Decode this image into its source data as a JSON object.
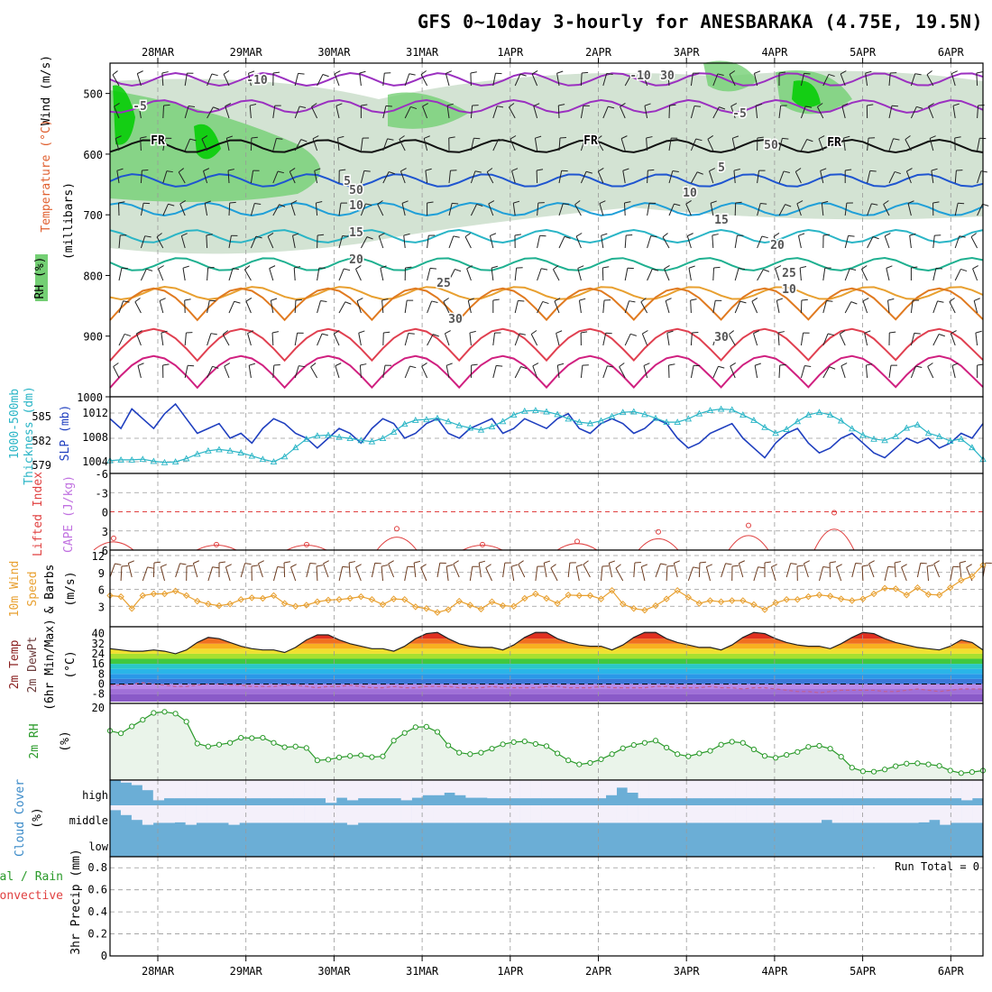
{
  "colors": {
    "rh_dark": "#00cc00",
    "rh_mid": "#74cf74",
    "rh_light": "#c8dcc8",
    "cloud": "#6baed6",
    "cloud_clear": "#f4f0fa",
    "slp": "#1f3fbf",
    "thick": "#2ab5c6",
    "li": "#e04040",
    "cape": "#c070e0",
    "wind10": "#e8a030",
    "barb": "#6b3a1e",
    "rh2m": "#2a9a2a",
    "rh2m_fill": "#eaf4ea"
  },
  "chart_data": {
    "type": "meteogram",
    "title": "GFS 0~10day 3-hourly for ANESBARAKA (4.75E, 19.5N)",
    "dates": [
      "28MAR",
      "29MAR",
      "30MAR",
      "31MAR",
      "1APR",
      "2APR",
      "3APR",
      "4APR",
      "5APR",
      "6APR"
    ],
    "panels": [
      {
        "id": "upper-air",
        "ylabels": [
          "Wind (m/s)",
          "Temperature (°C)",
          "RH (%)",
          "(millibars)"
        ],
        "yticks": [
          500,
          600,
          700,
          800,
          900,
          1000
        ],
        "ylim": [
          450,
          1000
        ],
        "contour_labels": [
          "-10",
          "-10",
          "-5",
          "-5",
          "FR",
          "FR",
          "FR",
          "5",
          "5",
          "10",
          "10",
          "15",
          "15",
          "20",
          "20",
          "25",
          "25",
          "30",
          "30",
          "50",
          "50",
          "30",
          "10"
        ]
      },
      {
        "id": "slp-thickness",
        "ylabels": [
          "1000-500mb",
          "Thickness (dm)",
          "SLP (mb)"
        ],
        "left_ticks": [
          "585",
          "582",
          "579"
        ],
        "right_ticks": [
          "1012",
          "1008",
          "1004"
        ],
        "slp_mb": [
          1010,
          1008,
          1012,
          1010,
          1008,
          1011,
          1013,
          1010,
          1007,
          1008,
          1009,
          1006,
          1007,
          1005,
          1008,
          1010,
          1009,
          1007,
          1006,
          1004,
          1006,
          1008,
          1007,
          1005,
          1008,
          1010,
          1009,
          1006,
          1007,
          1009,
          1010,
          1007,
          1006,
          1008,
          1009,
          1010,
          1007,
          1008,
          1010,
          1009,
          1008,
          1010,
          1011,
          1008,
          1007,
          1009,
          1010,
          1009,
          1007,
          1008,
          1010,
          1009,
          1006,
          1004,
          1005,
          1007,
          1008,
          1009,
          1006,
          1004,
          1002,
          1005,
          1007,
          1008,
          1005,
          1003,
          1004,
          1006,
          1007,
          1005,
          1003,
          1002,
          1004,
          1006,
          1005,
          1006,
          1004,
          1005,
          1007,
          1006,
          1009
        ],
        "thickness_dm": [
          578.6,
          578.7,
          578.7,
          578.8,
          578.5,
          578.3,
          578.4,
          578.9,
          579.6,
          580.1,
          580.3,
          580.1,
          579.8,
          579.3,
          578.8,
          578.4,
          579.2,
          580.6,
          581.9,
          582.4,
          582.5,
          582.2,
          582.0,
          581.7,
          581.5,
          582.0,
          583.0,
          584.2,
          584.8,
          584.9,
          585.1,
          584.6,
          584.0,
          583.6,
          583.3,
          583.8,
          584.6,
          585.6,
          586.2,
          586.3,
          586.1,
          585.7,
          585.0,
          584.5,
          584.3,
          584.7,
          585.4,
          586.0,
          586.1,
          585.7,
          585.1,
          584.5,
          584.5,
          585.0,
          585.8,
          586.3,
          586.5,
          586.4,
          585.6,
          584.8,
          583.7,
          582.8,
          583.4,
          584.6,
          585.6,
          586.0,
          585.6,
          584.7,
          583.5,
          582.5,
          581.9,
          581.7,
          582.3,
          583.6,
          584.1,
          582.8,
          582.3,
          581.6,
          581.9,
          580.6,
          578.8
        ]
      },
      {
        "id": "li-cape",
        "ylabels": [
          "Lifted Index",
          "CAPE (J/kg)"
        ],
        "yticks": [
          "-6",
          "-3",
          "0",
          "3",
          "6"
        ],
        "ylim": [
          -6,
          6
        ],
        "lifted_index": [
          6,
          6,
          6,
          6,
          6,
          6,
          6,
          6,
          6,
          6,
          6,
          6,
          6,
          6,
          6,
          6,
          6,
          6,
          6,
          6,
          6,
          6,
          6,
          6,
          6,
          6,
          6,
          6,
          6,
          6,
          5.5,
          6,
          6,
          6,
          6,
          6,
          6,
          6,
          6,
          6,
          6,
          6,
          6,
          6,
          6,
          6,
          6,
          6,
          6,
          6,
          6,
          6,
          6,
          6,
          6,
          6,
          6,
          6,
          6,
          6,
          6,
          6,
          6,
          6,
          6,
          6,
          6,
          6,
          6,
          6,
          6,
          6,
          6,
          6,
          6,
          6,
          6,
          6,
          6,
          6,
          6
        ]
      },
      {
        "id": "wind10",
        "ylabels": [
          "10m Wind",
          "Speed",
          "& Barbs",
          "(m/s)"
        ],
        "yticks": [
          "12",
          "9",
          "6",
          "3"
        ],
        "ylim": [
          0,
          12
        ],
        "speed_ms": [
          4.9,
          4.7,
          2.6,
          4.9,
          5.2,
          5.2,
          5.7,
          4.9,
          3.9,
          3.4,
          3.1,
          3.4,
          4.2,
          4.5,
          4.4,
          4.9,
          3.5,
          3.0,
          3.2,
          3.8,
          4.1,
          4.2,
          4.4,
          4.7,
          4.2,
          3.3,
          4.3,
          4.2,
          2.9,
          2.6,
          1.9,
          2.4,
          3.9,
          3.2,
          2.5,
          3.8,
          3.1,
          3.0,
          4.4,
          5.2,
          4.4,
          3.5,
          5.0,
          4.9,
          4.9,
          4.3,
          5.8,
          3.4,
          2.6,
          2.3,
          3.1,
          4.3,
          5.8,
          4.6,
          3.5,
          4.0,
          3.8,
          4.0,
          4.0,
          3.3,
          2.4,
          3.6,
          4.2,
          4.2,
          4.7,
          5.0,
          4.8,
          4.3,
          4.0,
          4.3,
          5.2,
          6.2,
          6.1,
          5.0,
          6.3,
          5.1,
          5.0,
          6.3,
          7.6,
          8.3,
          10.3
        ]
      },
      {
        "id": "temp2m",
        "ylabels": [
          "2m Temp",
          "2m DewPt",
          "(6hr Min/Max)",
          "(°C)"
        ],
        "yticks": [
          "40",
          "32",
          "24",
          "16",
          "8",
          "0",
          "-8"
        ],
        "ylim": [
          -14,
          44
        ],
        "temp_c": [
          28,
          27,
          26,
          26,
          27,
          26,
          24,
          27,
          33,
          37,
          36,
          33,
          30,
          28,
          27,
          27,
          25,
          29,
          35,
          39,
          39,
          35,
          32,
          30,
          28,
          28,
          26,
          30,
          36,
          40,
          41,
          36,
          32,
          30,
          29,
          29,
          27,
          31,
          37,
          41,
          41,
          36,
          33,
          31,
          30,
          30,
          27,
          31,
          37,
          41,
          41,
          36,
          33,
          31,
          29,
          29,
          27,
          31,
          37,
          41,
          40,
          36,
          33,
          31,
          30,
          30,
          28,
          32,
          37,
          41,
          40,
          36,
          33,
          31,
          29,
          28,
          27,
          30,
          35,
          33,
          27
        ],
        "dewpoint_c": [
          -1,
          -1,
          0,
          1,
          0,
          -1,
          -2,
          -2,
          -1,
          0,
          0,
          -1,
          -1,
          -2,
          -2,
          -2,
          -1,
          -1,
          -2,
          -3,
          -2,
          -2,
          -1,
          -2,
          -3,
          -3,
          -2,
          -3,
          -3,
          -2,
          -2,
          -2,
          -3,
          -3,
          -3,
          -2,
          -3,
          -3,
          -3,
          -3,
          -2,
          -2,
          -3,
          -3,
          -3,
          -2,
          -3,
          -3,
          -3,
          -3,
          -2,
          -2,
          -3,
          -3,
          -3,
          -2,
          -3,
          -3,
          -4,
          -3,
          -3,
          -4,
          -5,
          -6,
          -6,
          -7,
          -6,
          -5,
          -5,
          -5,
          -5,
          -6,
          -6,
          -5,
          -4,
          -5,
          -6,
          -5,
          -4,
          -4,
          -4
        ]
      },
      {
        "id": "rh2m",
        "ylabels": [
          "2m RH",
          "(%)"
        ],
        "yticks": [
          "20"
        ],
        "ylim": [
          0,
          21
        ],
        "rh_pct": [
          13.5,
          12.8,
          14.7,
          16.5,
          18.4,
          18.7,
          18.2,
          16.0,
          10.0,
          9.2,
          9.7,
          10.2,
          11.6,
          11.5,
          11.6,
          10.2,
          9.0,
          9.2,
          8.8,
          5.4,
          5.6,
          6.2,
          6.6,
          6.8,
          6.3,
          6.5,
          10.8,
          12.9,
          14.5,
          14.6,
          13.2,
          9.5,
          7.5,
          7.1,
          7.5,
          8.6,
          9.8,
          10.4,
          10.6,
          9.9,
          9.3,
          7.3,
          5.4,
          4.3,
          4.7,
          5.7,
          7.1,
          8.7,
          9.6,
          10.2,
          10.8,
          8.9,
          7.1,
          6.5,
          7.3,
          8.0,
          9.7,
          10.5,
          10.2,
          8.4,
          6.6,
          6.1,
          6.9,
          7.7,
          9.1,
          9.4,
          8.6,
          6.4,
          3.4,
          2.4,
          2.3,
          2.9,
          3.8,
          4.5,
          4.6,
          4.3,
          3.9,
          2.6,
          1.9,
          2.2,
          2.6
        ]
      },
      {
        "id": "cloud",
        "ylabels": [
          "Cloud Cover",
          "(%)"
        ],
        "levels": [
          "high",
          "middle",
          "low"
        ],
        "high": [
          100,
          90,
          80,
          60,
          20,
          0,
          0,
          0,
          0,
          0,
          0,
          0,
          0,
          0,
          0,
          0,
          0,
          0,
          0,
          0,
          10,
          30,
          20,
          0,
          0,
          0,
          0,
          20,
          30,
          40,
          40,
          50,
          40,
          30,
          30,
          0,
          0,
          0,
          0,
          0,
          0,
          0,
          0,
          0,
          0,
          0,
          40,
          70,
          50,
          0,
          0,
          0,
          0,
          0,
          0,
          0,
          0,
          0,
          0,
          0,
          0,
          0,
          0,
          0,
          0,
          0,
          0,
          0,
          0,
          0,
          0,
          0,
          0,
          0,
          0,
          0,
          0,
          0,
          0,
          20,
          0
        ],
        "middle": [
          80,
          60,
          40,
          20,
          0,
          0,
          30,
          20,
          0,
          0,
          0,
          20,
          0,
          0,
          0,
          0,
          0,
          0,
          0,
          0,
          0,
          0,
          20,
          0,
          0,
          0,
          0,
          0,
          0,
          0,
          0,
          0,
          0,
          0,
          0,
          0,
          0,
          0,
          0,
          0,
          0,
          0,
          0,
          0,
          0,
          0,
          0,
          0,
          0,
          0,
          0,
          0,
          0,
          0,
          0,
          0,
          0,
          0,
          0,
          0,
          0,
          0,
          0,
          0,
          0,
          0,
          40,
          0,
          0,
          0,
          0,
          0,
          0,
          0,
          0,
          30,
          40,
          20,
          0,
          0,
          0
        ],
        "low": [
          0,
          0,
          0,
          0,
          0,
          0,
          0,
          0,
          0,
          0,
          0,
          0,
          0,
          0,
          0,
          0,
          0,
          0,
          0,
          0,
          0,
          0,
          0,
          0,
          0,
          0,
          0,
          0,
          0,
          0,
          0,
          0,
          0,
          0,
          0,
          0,
          0,
          0,
          0,
          0,
          0,
          0,
          0,
          0,
          0,
          0,
          0,
          0,
          0,
          0,
          0,
          0,
          0,
          0,
          0,
          0,
          0,
          0,
          0,
          0,
          0,
          0,
          0,
          0,
          0,
          0,
          0,
          0,
          0,
          0,
          0,
          0,
          0,
          0,
          0,
          0,
          0,
          0,
          0,
          0,
          0
        ]
      },
      {
        "id": "precip",
        "ylabels": [
          "Total / Rain",
          "Convective",
          "3hr Precip (mm)"
        ],
        "yticks": [
          "0.8",
          "0.6",
          "0.4",
          "0.2",
          "0"
        ],
        "ylim": [
          0,
          0.9
        ],
        "run_total": "Run Total = 0",
        "values_mm": [
          0,
          0,
          0,
          0,
          0,
          0,
          0,
          0,
          0,
          0
        ]
      }
    ]
  }
}
